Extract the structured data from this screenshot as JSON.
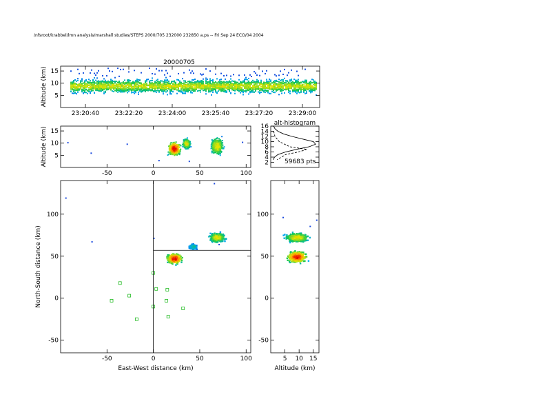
{
  "header": {
    "path": "/nfsroot/krabbel/lmn analysis/marshall studies/STEPS 2000/705 232000 232850 a.ps -- Fri Sep 24 ECO/04 2004"
  },
  "chart_data": [
    {
      "id": "altitude-vs-time",
      "type": "heatmap",
      "title": "20000705",
      "ylabel": "Altitude (km)",
      "ylim": [
        0,
        17
      ],
      "yticks": [
        5,
        10,
        15
      ],
      "xticks": [
        "23:20:40",
        "23:22:20",
        "23:24:00",
        "23:25:40",
        "23:27:20",
        "23:29:00"
      ],
      "description_band_altitude": [
        4,
        14
      ],
      "density_core_altitude": [
        7,
        11
      ]
    },
    {
      "id": "altitude-vs-ew",
      "type": "heatmap",
      "ylabel": "Altitude (km)",
      "ylim": [
        0,
        17
      ],
      "yticks": [
        5,
        10,
        15
      ],
      "xlim": [
        -100,
        105
      ],
      "xticks": [
        -50,
        0,
        50,
        100
      ],
      "clusters": [
        {
          "x": 22,
          "y": 8,
          "dx": 10,
          "dy": 4,
          "peak": "red"
        },
        {
          "x": 35,
          "y": 10,
          "dx": 6,
          "dy": 3,
          "peak": "yellow"
        },
        {
          "x": 68,
          "y": 9,
          "dx": 10,
          "dy": 5,
          "peak": "yellow"
        }
      ]
    },
    {
      "id": "alt-histogram",
      "type": "line",
      "title": "alt-histogram",
      "ylim": [
        0,
        16
      ],
      "yticks": [
        2,
        4,
        6,
        8,
        10,
        12,
        14,
        16
      ],
      "annotation": "59683 pts",
      "series": [
        {
          "style": "solid",
          "x": [
            0.02,
            0.05,
            0.12,
            0.25,
            0.45,
            0.7,
            0.95,
            1.0,
            0.85,
            0.55,
            0.3,
            0.12,
            0.04,
            0.01
          ],
          "y": [
            16,
            15,
            14,
            13,
            12,
            11,
            10,
            9,
            8,
            7,
            6,
            5,
            4,
            3
          ]
        },
        {
          "style": "dashed",
          "x": [
            0.02,
            0.05,
            0.15,
            0.4,
            0.8,
            0.6,
            0.3,
            0.1
          ],
          "y": [
            14,
            12,
            10,
            8,
            7,
            6,
            5,
            3
          ]
        }
      ]
    },
    {
      "id": "ns-vs-ew",
      "type": "heatmap",
      "xlabel": "East-West distance (km)",
      "ylabel": "North-South distance (km)",
      "xlim": [
        -100,
        105
      ],
      "ylim": [
        -65,
        140
      ],
      "xticks": [
        -50,
        0,
        50,
        100
      ],
      "yticks": [
        -50,
        0,
        50,
        100
      ],
      "crosshair": {
        "x": 0,
        "y": 57
      },
      "clusters": [
        {
          "x": 22,
          "y": 48,
          "dx": 12,
          "dy": 9,
          "peak": "red"
        },
        {
          "x": 42,
          "y": 62,
          "dx": 6,
          "dy": 4,
          "peak": "cyan"
        },
        {
          "x": 68,
          "y": 73,
          "dx": 12,
          "dy": 8,
          "peak": "yellow"
        }
      ],
      "stations": [
        {
          "x": -45,
          "y": -3
        },
        {
          "x": -36,
          "y": 18
        },
        {
          "x": -26,
          "y": 3
        },
        {
          "x": -18,
          "y": -25
        },
        {
          "x": 0,
          "y": 30
        },
        {
          "x": 3,
          "y": 11
        },
        {
          "x": 15,
          "y": 10
        },
        {
          "x": 14,
          "y": -3
        },
        {
          "x": 16,
          "y": -22
        },
        {
          "x": 32,
          "y": -12
        },
        {
          "x": 0,
          "y": -10
        }
      ]
    },
    {
      "id": "ns-vs-altitude",
      "type": "heatmap",
      "xlabel": "Altitude (km)",
      "xlim": [
        0,
        17
      ],
      "ylim": [
        -65,
        140
      ],
      "xticks": [
        5,
        10,
        15
      ],
      "yticks": [
        -50,
        0,
        50,
        100
      ],
      "clusters": [
        {
          "x": 9,
          "y": 50,
          "dx": 5,
          "dy": 10,
          "peak": "red"
        },
        {
          "x": 9,
          "y": 73,
          "dx": 6,
          "dy": 8,
          "peak": "yellow"
        }
      ]
    }
  ]
}
